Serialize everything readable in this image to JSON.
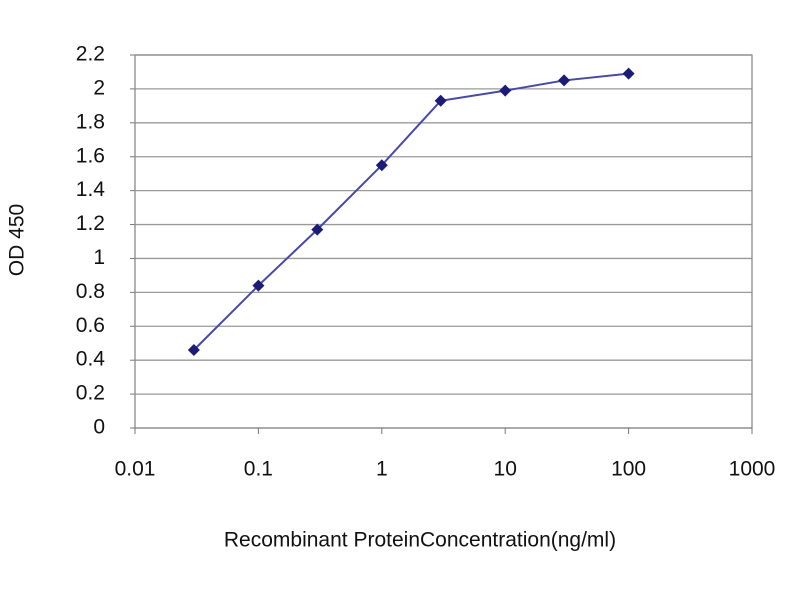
{
  "chart_data": {
    "type": "line",
    "x_label": "Recombinant ProteinConcentration(ng/ml)",
    "y_label": "OD 450",
    "x": [
      0.03,
      0.1,
      0.3,
      1,
      3,
      10,
      30,
      100
    ],
    "series": [
      {
        "color": "#1c1c78",
        "values": [
          0.46,
          0.84,
          1.17,
          1.55,
          1.93,
          1.99,
          2.05,
          2.09
        ]
      }
    ],
    "xscale": "log",
    "xlim": [
      0.01,
      1000
    ],
    "xticks": [
      0.01,
      0.1,
      1,
      10,
      100,
      1000
    ],
    "ylim": [
      0,
      2.2
    ],
    "yticks": [
      0,
      0.2,
      0.4,
      0.6,
      0.8,
      1,
      1.2,
      1.4,
      1.6,
      1.8,
      2,
      2.2
    ],
    "grid": true
  }
}
